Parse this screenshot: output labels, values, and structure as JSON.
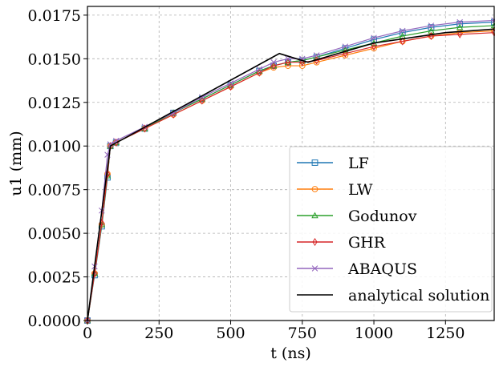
{
  "chart_data": {
    "type": "line",
    "title": "",
    "xlabel": "t (ns)",
    "ylabel": "u1 (mm)",
    "xlim": [
      0,
      1420
    ],
    "ylim": [
      0,
      0.018
    ],
    "x_ticks": [
      "0",
      "250",
      "500",
      "750",
      "1000",
      "1250"
    ],
    "x_tick_values": [
      0,
      250,
      500,
      750,
      1000,
      1250
    ],
    "y_ticks": [
      "0.0000",
      "0.0025",
      "0.0050",
      "0.0075",
      "0.0100",
      "0.0125",
      "0.0150",
      "0.0175"
    ],
    "y_tick_values": [
      0,
      0.0025,
      0.005,
      0.0075,
      0.01,
      0.0125,
      0.015,
      0.0175
    ],
    "grid": true,
    "legend_position": "lower-right",
    "series": [
      {
        "name": "LF",
        "color": "#1f77b4",
        "marker": "square",
        "x": [
          0,
          25,
          50,
          70,
          80,
          100,
          200,
          300,
          400,
          500,
          600,
          650,
          700,
          750,
          800,
          900,
          1000,
          1100,
          1200,
          1300,
          1420
        ],
        "y": [
          0,
          0.0026,
          0.0054,
          0.0082,
          0.01,
          0.0102,
          0.011,
          0.0119,
          0.0127,
          0.0135,
          0.0143,
          0.0146,
          0.0148,
          0.0149,
          0.0151,
          0.0156,
          0.0161,
          0.0165,
          0.0168,
          0.017,
          0.0171
        ]
      },
      {
        "name": "LW",
        "color": "#ff7f0e",
        "marker": "circle",
        "x": [
          0,
          25,
          50,
          70,
          80,
          100,
          200,
          300,
          400,
          500,
          600,
          650,
          700,
          750,
          800,
          900,
          1000,
          1100,
          1200,
          1300,
          1420
        ],
        "y": [
          0,
          0.0027,
          0.0055,
          0.0084,
          0.01,
          0.0102,
          0.011,
          0.0118,
          0.0126,
          0.0134,
          0.0142,
          0.0145,
          0.0146,
          0.0146,
          0.0148,
          0.0152,
          0.0156,
          0.016,
          0.0163,
          0.0165,
          0.0166
        ]
      },
      {
        "name": "Godunov",
        "color": "#2ca02c",
        "marker": "triangle",
        "x": [
          0,
          25,
          50,
          70,
          80,
          100,
          200,
          300,
          400,
          500,
          600,
          650,
          700,
          750,
          800,
          900,
          1000,
          1100,
          1200,
          1300,
          1420
        ],
        "y": [
          0,
          0.0027,
          0.0055,
          0.0083,
          0.01,
          0.0102,
          0.011,
          0.0119,
          0.0127,
          0.0135,
          0.0143,
          0.0146,
          0.0148,
          0.0149,
          0.0151,
          0.0155,
          0.0159,
          0.0163,
          0.0166,
          0.0168,
          0.0169
        ]
      },
      {
        "name": "GHR",
        "color": "#d62728",
        "marker": "diamond",
        "x": [
          0,
          25,
          50,
          70,
          80,
          100,
          200,
          300,
          400,
          500,
          600,
          650,
          700,
          750,
          800,
          900,
          1000,
          1100,
          1200,
          1300,
          1420
        ],
        "y": [
          0,
          0.0027,
          0.0056,
          0.0084,
          0.01,
          0.0102,
          0.011,
          0.0118,
          0.0126,
          0.0134,
          0.0142,
          0.0146,
          0.0148,
          0.0148,
          0.0149,
          0.0153,
          0.0157,
          0.016,
          0.0163,
          0.0164,
          0.0165
        ]
      },
      {
        "name": "ABAQUS",
        "color": "#9467bd",
        "marker": "x",
        "x": [
          0,
          25,
          50,
          70,
          80,
          100,
          200,
          300,
          400,
          500,
          600,
          650,
          700,
          750,
          800,
          900,
          1000,
          1100,
          1200,
          1300,
          1420
        ],
        "y": [
          0,
          0.0031,
          0.0063,
          0.0095,
          0.0101,
          0.0103,
          0.0111,
          0.0119,
          0.0128,
          0.0136,
          0.0144,
          0.0148,
          0.015,
          0.015,
          0.0152,
          0.0157,
          0.0162,
          0.0166,
          0.0169,
          0.0171,
          0.0172
        ]
      },
      {
        "name": "analytical solution",
        "color": "#000000",
        "marker": "none",
        "x": [
          0,
          80,
          670,
          770,
          1000,
          1250,
          1420
        ],
        "y": [
          0,
          0.01,
          0.0153,
          0.0148,
          0.0159,
          0.0165,
          0.0167
        ]
      }
    ]
  }
}
